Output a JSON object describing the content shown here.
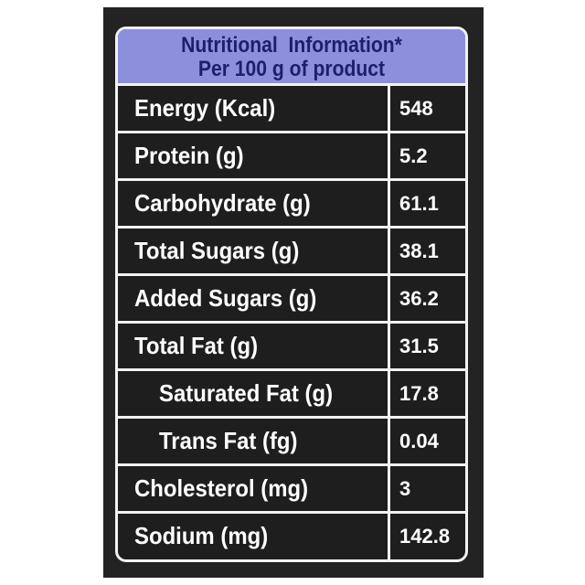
{
  "header": {
    "title": "Nutritional  Information*",
    "subtitle": "Per 100 g of product"
  },
  "table": {
    "rows": [
      [
        "Energy (Kcal)",
        "548"
      ],
      [
        "Protein (g)",
        "5.2"
      ],
      [
        "Carbohydrate (g)",
        "61.1"
      ],
      [
        "Total Sugars (g)",
        "38.1"
      ],
      [
        "Added Sugars (g)",
        "36.2"
      ],
      [
        "Total Fat (g)",
        "31.5"
      ],
      [
        "Saturated Fat (g)",
        "17.8"
      ],
      [
        "Trans Fat (fg)",
        "0.04"
      ],
      [
        "Cholesterol (mg)",
        "3"
      ],
      [
        "Sodium (mg)",
        "142.8"
      ]
    ]
  }
}
